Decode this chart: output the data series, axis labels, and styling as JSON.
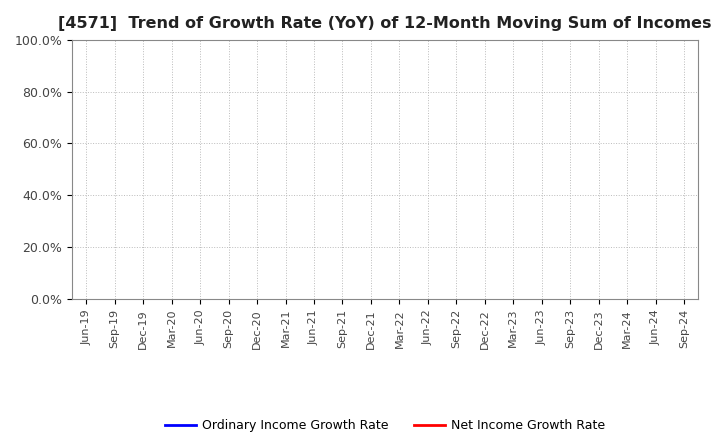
{
  "title": "[4571]  Trend of Growth Rate (YoY) of 12-Month Moving Sum of Incomes",
  "title_fontsize": 11.5,
  "xlabel": "",
  "ylabel": "",
  "ylim": [
    0.0,
    1.0
  ],
  "yticks": [
    0.0,
    0.2,
    0.4,
    0.6,
    0.8,
    1.0
  ],
  "ytick_labels": [
    "0.0%",
    "20.0%",
    "40.0%",
    "60.0%",
    "80.0%",
    "100.0%"
  ],
  "xtick_labels": [
    "Jun-19",
    "Sep-19",
    "Dec-19",
    "Mar-20",
    "Jun-20",
    "Sep-20",
    "Dec-20",
    "Mar-21",
    "Jun-21",
    "Sep-21",
    "Dec-21",
    "Mar-22",
    "Jun-22",
    "Sep-22",
    "Dec-22",
    "Mar-23",
    "Jun-23",
    "Sep-23",
    "Dec-23",
    "Mar-24",
    "Jun-24",
    "Sep-24"
  ],
  "legend_labels": [
    "Ordinary Income Growth Rate",
    "Net Income Growth Rate"
  ],
  "legend_colors": [
    "#0000ff",
    "#ff0000"
  ],
  "background_color": "#ffffff",
  "grid_color": "#aaaaaa",
  "ordinary_income_data": [],
  "net_income_data": [],
  "fig_width": 7.2,
  "fig_height": 4.4,
  "dpi": 100
}
